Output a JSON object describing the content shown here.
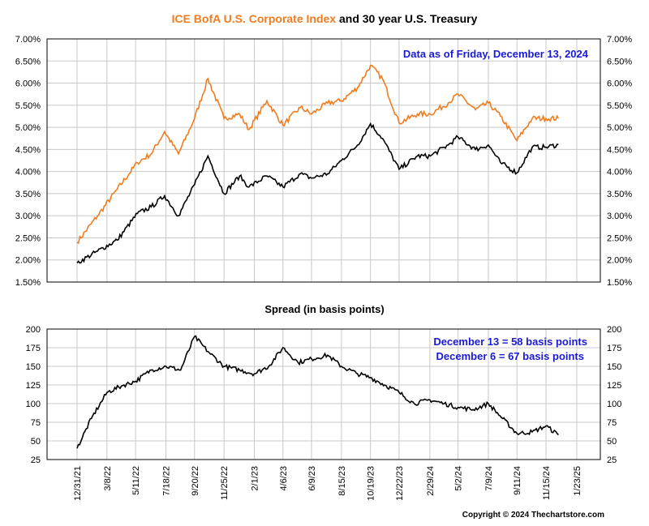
{
  "title": {
    "part1": "ICE BofA U.S. Corporate Index",
    "part2": " and 30 year U.S. Treasury",
    "part1_color": "#f07c1e",
    "part2_color": "#000000"
  },
  "annotation_top": "Data as of Friday, December 13, 2024",
  "spread_title": "Spread (in basis points)",
  "annotation_bottom": [
    "December 13 = 58 basis points",
    "December 6 = 67 basis points"
  ],
  "copyright": "Copyright © 2024 Thechartstore.com",
  "colors": {
    "corporate": "#f07c1e",
    "treasury": "#000000",
    "spread": "#000000",
    "annotation": "#1a1ad6",
    "grid": "#c8c8c8"
  },
  "chart_data": [
    {
      "type": "line",
      "title": "ICE BofA U.S. Corporate Index and 30 year U.S. Treasury",
      "ylim": [
        1.5,
        7.0
      ],
      "y_ticks": [
        "1.50%",
        "2.00%",
        "2.50%",
        "3.00%",
        "3.50%",
        "4.00%",
        "4.50%",
        "5.00%",
        "5.50%",
        "6.00%",
        "6.50%",
        "7.00%"
      ],
      "grid": true,
      "x_dates": [
        "2021-12-31",
        "2022-02-15",
        "2022-03-31",
        "2022-05-15",
        "2022-06-15",
        "2022-07-15",
        "2022-08-15",
        "2022-09-20",
        "2022-10-20",
        "2022-11-25",
        "2022-12-30",
        "2023-01-20",
        "2023-03-01",
        "2023-04-06",
        "2023-05-15",
        "2023-06-09",
        "2023-07-15",
        "2023-08-15",
        "2023-09-20",
        "2023-10-19",
        "2023-11-15",
        "2023-12-22",
        "2024-02-01",
        "2024-03-01",
        "2024-04-10",
        "2024-05-02",
        "2024-06-10",
        "2024-07-09",
        "2024-08-05",
        "2024-09-11",
        "2024-10-15",
        "2024-11-15",
        "2024-12-13"
      ],
      "series": [
        {
          "name": "ICE BofA U.S. Corporate Index",
          "values": [
            2.4,
            3.0,
            3.6,
            4.2,
            4.4,
            4.9,
            4.4,
            5.2,
            6.1,
            5.2,
            5.3,
            4.95,
            5.6,
            5.05,
            5.45,
            5.3,
            5.55,
            5.6,
            5.9,
            6.4,
            6.1,
            5.1,
            5.3,
            5.3,
            5.55,
            5.75,
            5.4,
            5.55,
            5.25,
            4.7,
            5.2,
            5.2,
            5.2
          ]
        },
        {
          "name": "30 year U.S. Treasury",
          "values": [
            1.93,
            2.2,
            2.45,
            3.05,
            3.2,
            3.45,
            3.0,
            3.7,
            4.35,
            3.5,
            3.9,
            3.65,
            3.9,
            3.65,
            3.95,
            3.85,
            3.95,
            4.25,
            4.6,
            5.08,
            4.75,
            4.05,
            4.35,
            4.35,
            4.6,
            4.78,
            4.5,
            4.6,
            4.2,
            3.97,
            4.55,
            4.55,
            4.61
          ]
        }
      ]
    },
    {
      "type": "line",
      "title": "Spread (in basis points)",
      "ylim": [
        25,
        200
      ],
      "y_ticks": [
        "25",
        "50",
        "75",
        "100",
        "125",
        "150",
        "175",
        "200"
      ],
      "grid": true,
      "x_tick_labels": [
        "12/31/21",
        "3/8/22",
        "5/11/22",
        "7/18/22",
        "9/20/22",
        "11/25/22",
        "2/1/23",
        "4/6/23",
        "6/9/23",
        "8/15/23",
        "10/19/23",
        "12/22/23",
        "2/29/24",
        "5/2/24",
        "7/9/24",
        "9/11/24",
        "11/15/24",
        "1/23/25"
      ],
      "x_dates": [
        "2021-12-31",
        "2022-02-01",
        "2022-03-08",
        "2022-04-15",
        "2022-05-11",
        "2022-06-15",
        "2022-07-18",
        "2022-08-20",
        "2022-09-20",
        "2022-10-20",
        "2022-11-25",
        "2022-12-30",
        "2023-02-01",
        "2023-03-05",
        "2023-04-06",
        "2023-05-10",
        "2023-06-09",
        "2023-07-15",
        "2023-08-15",
        "2023-09-20",
        "2023-10-19",
        "2023-11-20",
        "2023-12-22",
        "2024-01-25",
        "2024-02-29",
        "2024-04-01",
        "2024-05-02",
        "2024-06-05",
        "2024-07-09",
        "2024-08-10",
        "2024-09-11",
        "2024-10-15",
        "2024-11-15",
        "2024-12-13"
      ],
      "series": [
        {
          "name": "Spread",
          "values": [
            40,
            80,
            115,
            125,
            130,
            145,
            150,
            145,
            190,
            170,
            150,
            145,
            140,
            150,
            175,
            155,
            160,
            165,
            150,
            140,
            135,
            125,
            115,
            100,
            105,
            100,
            95,
            92,
            100,
            80,
            60,
            62,
            70,
            58
          ]
        }
      ]
    }
  ]
}
